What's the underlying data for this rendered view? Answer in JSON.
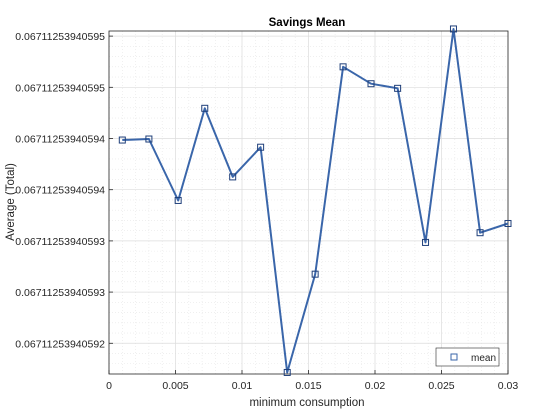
{
  "chart_data": {
    "type": "line",
    "title": "Savings Mean",
    "xlabel": "minimum consumption",
    "ylabel": "Average (Total)",
    "xlim": [
      0,
      0.03
    ],
    "x_ticks": [
      0,
      0.005,
      0.01,
      0.015,
      0.02,
      0.025,
      0.03
    ],
    "x_tick_labels": [
      "0",
      "0.005",
      "0.01",
      "0.015",
      "0.02",
      "0.025",
      "0.03"
    ],
    "ylim": [
      0.4,
      7.1
    ],
    "y_ticks": [
      1,
      2,
      3,
      4,
      5,
      6,
      7
    ],
    "y_tick_labels": [
      "0.0671125394059​2",
      "0.0671125394059​3",
      "0.0671125394059​3",
      "0.0671125394059​4",
      "0.0671125394059​4",
      "0.0671125394059​5",
      "0.0671125394059​5"
    ],
    "grid": true,
    "minor_grid": true,
    "legend_position": "bottom-right",
    "series": [
      {
        "name": "mean",
        "color": "#3a66aa",
        "marker": "square",
        "x": [
          0.001,
          0.003,
          0.0052,
          0.0072,
          0.0093,
          0.0114,
          0.0134,
          0.0155,
          0.0176,
          0.0197,
          0.0217,
          0.0238,
          0.0259,
          0.0279,
          0.03
        ],
        "y": [
          4.97,
          4.99,
          3.79,
          5.59,
          4.25,
          4.83,
          0.43,
          2.35,
          6.4,
          6.07,
          5.98,
          2.97,
          7.14,
          3.16,
          3.34
        ]
      }
    ]
  }
}
